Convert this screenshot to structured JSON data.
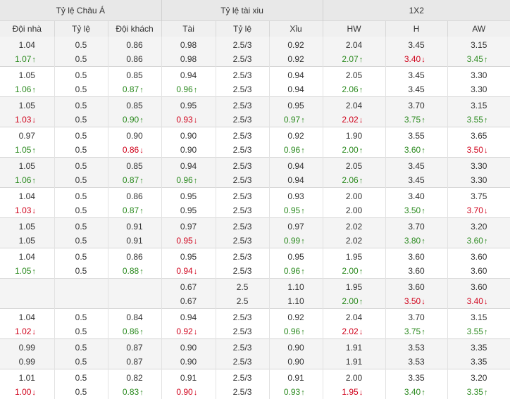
{
  "header": {
    "groups": [
      "Tỷ lệ Châu Á",
      "Tỷ lệ tài xiu",
      "1X2"
    ],
    "columns": [
      "Đội nhà",
      "Tỷ lệ",
      "Đội khách",
      "Tài",
      "Tỷ lệ",
      "Xỉu",
      "HW",
      "H",
      "AW"
    ]
  },
  "colors": {
    "up": "#2b8a1f",
    "down": "#d0021b"
  },
  "rows": [
    [
      [
        [
          "1.04",
          ""
        ],
        [
          "0.5",
          ""
        ],
        [
          "0.86",
          ""
        ],
        [
          "0.98",
          ""
        ],
        [
          "2.5/3",
          ""
        ],
        [
          "0.92",
          ""
        ],
        [
          "2.04",
          ""
        ],
        [
          "3.45",
          ""
        ],
        [
          "3.15",
          ""
        ]
      ],
      [
        [
          "1.07",
          "up"
        ],
        [
          "0.5",
          ""
        ],
        [
          "0.86",
          ""
        ],
        [
          "0.98",
          ""
        ],
        [
          "2.5/3",
          ""
        ],
        [
          "0.92",
          ""
        ],
        [
          "2.07",
          "up"
        ],
        [
          "3.40",
          "down"
        ],
        [
          "3.45",
          "up"
        ]
      ]
    ],
    [
      [
        [
          "1.05",
          ""
        ],
        [
          "0.5",
          ""
        ],
        [
          "0.85",
          ""
        ],
        [
          "0.94",
          ""
        ],
        [
          "2.5/3",
          ""
        ],
        [
          "0.94",
          ""
        ],
        [
          "2.05",
          ""
        ],
        [
          "3.45",
          ""
        ],
        [
          "3.30",
          ""
        ]
      ],
      [
        [
          "1.06",
          "up"
        ],
        [
          "0.5",
          ""
        ],
        [
          "0.87",
          "up"
        ],
        [
          "0.96",
          "up"
        ],
        [
          "2.5/3",
          ""
        ],
        [
          "0.94",
          ""
        ],
        [
          "2.06",
          "up"
        ],
        [
          "3.45",
          ""
        ],
        [
          "3.30",
          ""
        ]
      ]
    ],
    [
      [
        [
          "1.05",
          ""
        ],
        [
          "0.5",
          ""
        ],
        [
          "0.85",
          ""
        ],
        [
          "0.95",
          ""
        ],
        [
          "2.5/3",
          ""
        ],
        [
          "0.95",
          ""
        ],
        [
          "2.04",
          ""
        ],
        [
          "3.70",
          ""
        ],
        [
          "3.15",
          ""
        ]
      ],
      [
        [
          "1.03",
          "down"
        ],
        [
          "0.5",
          ""
        ],
        [
          "0.90",
          "up"
        ],
        [
          "0.93",
          "down"
        ],
        [
          "2.5/3",
          ""
        ],
        [
          "0.97",
          "up"
        ],
        [
          "2.02",
          "down"
        ],
        [
          "3.75",
          "up"
        ],
        [
          "3.55",
          "up"
        ]
      ]
    ],
    [
      [
        [
          "0.97",
          ""
        ],
        [
          "0.5",
          ""
        ],
        [
          "0.90",
          ""
        ],
        [
          "0.90",
          ""
        ],
        [
          "2.5/3",
          ""
        ],
        [
          "0.92",
          ""
        ],
        [
          "1.90",
          ""
        ],
        [
          "3.55",
          ""
        ],
        [
          "3.65",
          ""
        ]
      ],
      [
        [
          "1.05",
          "up"
        ],
        [
          "0.5",
          ""
        ],
        [
          "0.86",
          "down"
        ],
        [
          "0.90",
          ""
        ],
        [
          "2.5/3",
          ""
        ],
        [
          "0.96",
          "up"
        ],
        [
          "2.00",
          "up"
        ],
        [
          "3.60",
          "up"
        ],
        [
          "3.50",
          "down"
        ]
      ]
    ],
    [
      [
        [
          "1.05",
          ""
        ],
        [
          "0.5",
          ""
        ],
        [
          "0.85",
          ""
        ],
        [
          "0.94",
          ""
        ],
        [
          "2.5/3",
          ""
        ],
        [
          "0.94",
          ""
        ],
        [
          "2.05",
          ""
        ],
        [
          "3.45",
          ""
        ],
        [
          "3.30",
          ""
        ]
      ],
      [
        [
          "1.06",
          "up"
        ],
        [
          "0.5",
          ""
        ],
        [
          "0.87",
          "up"
        ],
        [
          "0.96",
          "up"
        ],
        [
          "2.5/3",
          ""
        ],
        [
          "0.94",
          ""
        ],
        [
          "2.06",
          "up"
        ],
        [
          "3.45",
          ""
        ],
        [
          "3.30",
          ""
        ]
      ]
    ],
    [
      [
        [
          "1.04",
          ""
        ],
        [
          "0.5",
          ""
        ],
        [
          "0.86",
          ""
        ],
        [
          "0.95",
          ""
        ],
        [
          "2.5/3",
          ""
        ],
        [
          "0.93",
          ""
        ],
        [
          "2.00",
          ""
        ],
        [
          "3.40",
          ""
        ],
        [
          "3.75",
          ""
        ]
      ],
      [
        [
          "1.03",
          "down"
        ],
        [
          "0.5",
          ""
        ],
        [
          "0.87",
          "up"
        ],
        [
          "0.95",
          ""
        ],
        [
          "2.5/3",
          ""
        ],
        [
          "0.95",
          "up"
        ],
        [
          "2.00",
          ""
        ],
        [
          "3.50",
          "up"
        ],
        [
          "3.70",
          "down"
        ]
      ]
    ],
    [
      [
        [
          "1.05",
          ""
        ],
        [
          "0.5",
          ""
        ],
        [
          "0.91",
          ""
        ],
        [
          "0.97",
          ""
        ],
        [
          "2.5/3",
          ""
        ],
        [
          "0.97",
          ""
        ],
        [
          "2.02",
          ""
        ],
        [
          "3.70",
          ""
        ],
        [
          "3.20",
          ""
        ]
      ],
      [
        [
          "1.05",
          ""
        ],
        [
          "0.5",
          ""
        ],
        [
          "0.91",
          ""
        ],
        [
          "0.95",
          "down"
        ],
        [
          "2.5/3",
          ""
        ],
        [
          "0.99",
          "up"
        ],
        [
          "2.02",
          ""
        ],
        [
          "3.80",
          "up"
        ],
        [
          "3.60",
          "up"
        ]
      ]
    ],
    [
      [
        [
          "1.04",
          ""
        ],
        [
          "0.5",
          ""
        ],
        [
          "0.86",
          ""
        ],
        [
          "0.95",
          ""
        ],
        [
          "2.5/3",
          ""
        ],
        [
          "0.95",
          ""
        ],
        [
          "1.95",
          ""
        ],
        [
          "3.60",
          ""
        ],
        [
          "3.60",
          ""
        ]
      ],
      [
        [
          "1.05",
          "up"
        ],
        [
          "0.5",
          ""
        ],
        [
          "0.88",
          "up"
        ],
        [
          "0.94",
          "down"
        ],
        [
          "2.5/3",
          ""
        ],
        [
          "0.96",
          "up"
        ],
        [
          "2.00",
          "up"
        ],
        [
          "3.60",
          ""
        ],
        [
          "3.60",
          ""
        ]
      ]
    ],
    [
      [
        [
          "",
          ""
        ],
        [
          "",
          ""
        ],
        [
          "",
          ""
        ],
        [
          "0.67",
          ""
        ],
        [
          "2.5",
          ""
        ],
        [
          "1.10",
          ""
        ],
        [
          "1.95",
          ""
        ],
        [
          "3.60",
          ""
        ],
        [
          "3.60",
          ""
        ]
      ],
      [
        [
          "",
          ""
        ],
        [
          "",
          ""
        ],
        [
          "",
          ""
        ],
        [
          "0.67",
          ""
        ],
        [
          "2.5",
          ""
        ],
        [
          "1.10",
          ""
        ],
        [
          "2.00",
          "up"
        ],
        [
          "3.50",
          "down"
        ],
        [
          "3.40",
          "down"
        ]
      ]
    ],
    [
      [
        [
          "1.04",
          ""
        ],
        [
          "0.5",
          ""
        ],
        [
          "0.84",
          ""
        ],
        [
          "0.94",
          ""
        ],
        [
          "2.5/3",
          ""
        ],
        [
          "0.92",
          ""
        ],
        [
          "2.04",
          ""
        ],
        [
          "3.70",
          ""
        ],
        [
          "3.15",
          ""
        ]
      ],
      [
        [
          "1.02",
          "down"
        ],
        [
          "0.5",
          ""
        ],
        [
          "0.86",
          "up"
        ],
        [
          "0.92",
          "down"
        ],
        [
          "2.5/3",
          ""
        ],
        [
          "0.96",
          "up"
        ],
        [
          "2.02",
          "down"
        ],
        [
          "3.75",
          "up"
        ],
        [
          "3.55",
          "up"
        ]
      ]
    ],
    [
      [
        [
          "0.99",
          ""
        ],
        [
          "0.5",
          ""
        ],
        [
          "0.87",
          ""
        ],
        [
          "0.90",
          ""
        ],
        [
          "2.5/3",
          ""
        ],
        [
          "0.90",
          ""
        ],
        [
          "1.91",
          ""
        ],
        [
          "3.53",
          ""
        ],
        [
          "3.35",
          ""
        ]
      ],
      [
        [
          "0.99",
          ""
        ],
        [
          "0.5",
          ""
        ],
        [
          "0.87",
          ""
        ],
        [
          "0.90",
          ""
        ],
        [
          "2.5/3",
          ""
        ],
        [
          "0.90",
          ""
        ],
        [
          "1.91",
          ""
        ],
        [
          "3.53",
          ""
        ],
        [
          "3.35",
          ""
        ]
      ]
    ],
    [
      [
        [
          "1.01",
          ""
        ],
        [
          "0.5",
          ""
        ],
        [
          "0.82",
          ""
        ],
        [
          "0.91",
          ""
        ],
        [
          "2.5/3",
          ""
        ],
        [
          "0.91",
          ""
        ],
        [
          "2.00",
          ""
        ],
        [
          "3.35",
          ""
        ],
        [
          "3.20",
          ""
        ]
      ],
      [
        [
          "1.00",
          "down"
        ],
        [
          "0.5",
          ""
        ],
        [
          "0.83",
          "up"
        ],
        [
          "0.90",
          "down"
        ],
        [
          "2.5/3",
          ""
        ],
        [
          "0.93",
          "up"
        ],
        [
          "1.95",
          "down"
        ],
        [
          "3.40",
          "up"
        ],
        [
          "3.35",
          "up"
        ]
      ]
    ]
  ]
}
